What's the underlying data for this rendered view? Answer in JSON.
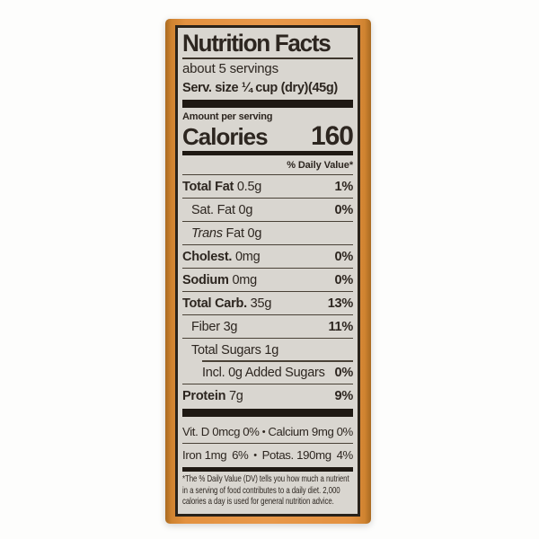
{
  "label": {
    "title": "Nutrition Facts",
    "servings": "about 5 servings",
    "serving_size": "Serv. size ¼ cup (dry)(45g)",
    "amount_per_serving": "Amount per serving",
    "calories_label": "Calories",
    "calories_value": "160",
    "daily_value_header": "% Daily Value*",
    "nutrients": [
      {
        "bold": "Total Fat",
        "italic": "",
        "rest": " 0.5g",
        "pct": "1%",
        "indent": 0,
        "partial_rule": false
      },
      {
        "bold": "",
        "italic": "",
        "rest": "Sat. Fat 0g",
        "pct": "0%",
        "indent": 1,
        "partial_rule": false
      },
      {
        "bold": "",
        "italic": "Trans",
        "rest": " Fat 0g",
        "pct": "",
        "indent": 1,
        "partial_rule": false
      },
      {
        "bold": "Cholest.",
        "italic": "",
        "rest": " 0mg",
        "pct": "0%",
        "indent": 0,
        "partial_rule": false
      },
      {
        "bold": "Sodium",
        "italic": "",
        "rest": " 0mg",
        "pct": "0%",
        "indent": 0,
        "partial_rule": false
      },
      {
        "bold": "Total Carb.",
        "italic": "",
        "rest": " 35g",
        "pct": "13%",
        "indent": 0,
        "partial_rule": false
      },
      {
        "bold": "",
        "italic": "",
        "rest": "Fiber 3g",
        "pct": "11%",
        "indent": 1,
        "partial_rule": false
      },
      {
        "bold": "",
        "italic": "",
        "rest": "Total Sugars 1g",
        "pct": "",
        "indent": 1,
        "partial_rule": false
      },
      {
        "bold": "",
        "italic": "",
        "rest": "Incl. 0g Added Sugars",
        "pct": "0%",
        "indent": 2,
        "partial_rule": true
      },
      {
        "bold": "Protein",
        "italic": "",
        "rest": " 7g",
        "pct": "9%",
        "indent": 0,
        "partial_rule": false
      }
    ],
    "micronutrients": {
      "bullet": "•",
      "rows": [
        {
          "left": "Vit. D 0mcg",
          "left_pct": "0%",
          "right": "Calcium 9mg",
          "right_pct": "0%"
        },
        {
          "left": "Iron 1mg",
          "left_pct": "6%",
          "right": "Potas. 190mg",
          "right_pct": "4%"
        }
      ]
    },
    "footnote": "*The % Daily Value (DV) tells you how much a nutrient in a serving of food contributes to a daily diet. 2,000 calories a day is used for general nutrition advice."
  },
  "colors": {
    "package_orange": "#e39140",
    "label_background": "#d9d6d0",
    "ink": "#2d2620"
  }
}
